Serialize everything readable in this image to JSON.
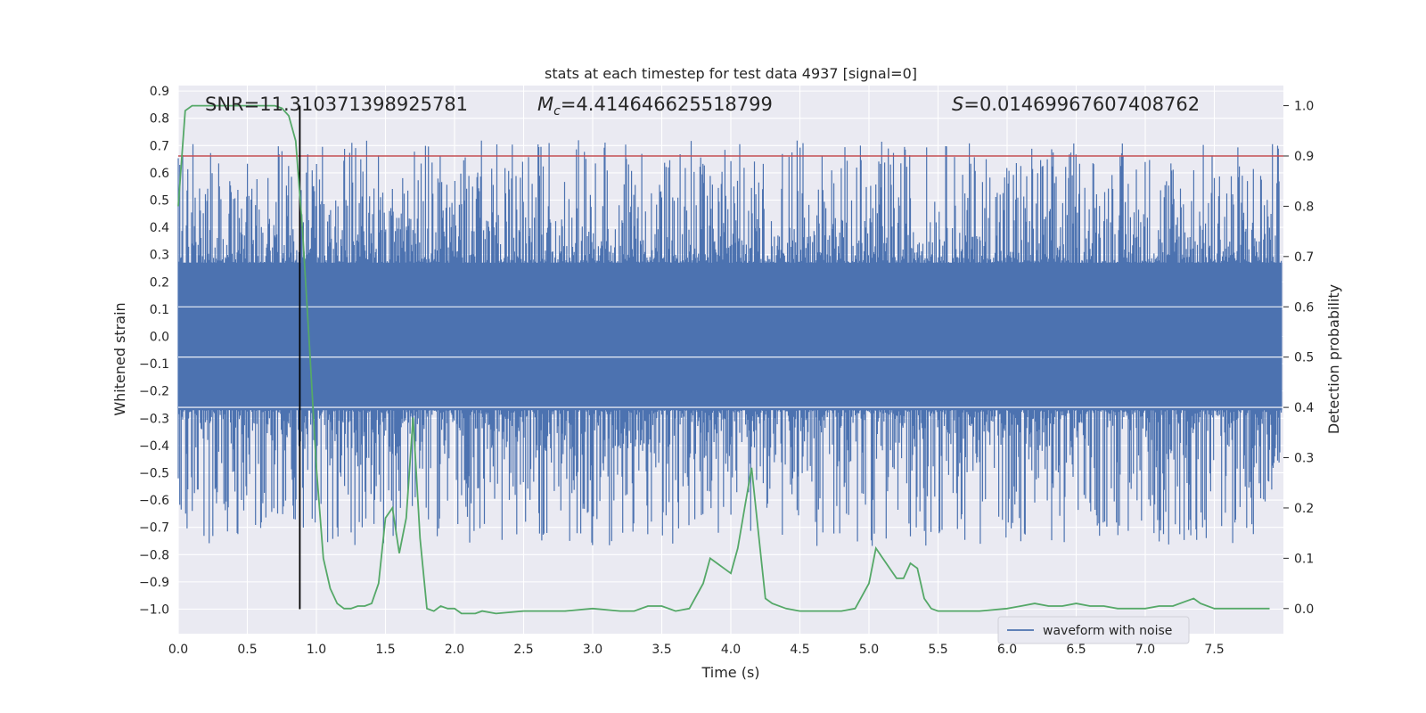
{
  "chart_data": {
    "type": "line",
    "title": "stats at each timestep for test data 4937 [signal=0]",
    "xlabel": "Time (s)",
    "ylabel": "Whitened strain",
    "y2label": "Detection probability",
    "xlim": [
      0.0,
      8.0
    ],
    "ylim": [
      -1.09,
      0.92
    ],
    "y2lim": [
      -0.05,
      1.04
    ],
    "x_ticks": [
      0.0,
      0.5,
      1.0,
      1.5,
      2.0,
      2.5,
      3.0,
      3.5,
      4.0,
      4.5,
      5.0,
      5.5,
      6.0,
      6.5,
      7.0,
      7.5
    ],
    "x_tick_labels": [
      "0.0",
      "0.5",
      "1.0",
      "1.5",
      "2.0",
      "2.5",
      "3.0",
      "3.5",
      "4.0",
      "4.5",
      "5.0",
      "5.5",
      "6.0",
      "6.5",
      "7.0",
      "7.5"
    ],
    "y_ticks": [
      0.9,
      0.8,
      0.7,
      0.6,
      0.5,
      0.4,
      0.3,
      0.2,
      0.1,
      0.0,
      -0.1,
      -0.2,
      -0.3,
      -0.4,
      -0.5,
      -0.6,
      -0.7,
      -0.8,
      -0.9,
      -1.0
    ],
    "y_tick_labels": [
      "0.9",
      "0.8",
      "0.7",
      "0.6",
      "0.5",
      "0.4",
      "0.3",
      "0.2",
      "0.1",
      "0.0",
      "−0.1",
      "−0.2",
      "−0.3",
      "−0.4",
      "−0.5",
      "−0.6",
      "−0.7",
      "−0.8",
      "−0.9",
      "−1.0"
    ],
    "y2_ticks": [
      1.0,
      0.9,
      0.8,
      0.7,
      0.6,
      0.5,
      0.4,
      0.3,
      0.2,
      0.1,
      0.0
    ],
    "y2_tick_labels": [
      "1.0",
      "0.9",
      "0.8",
      "0.7",
      "0.6",
      "0.5",
      "0.4",
      "0.3",
      "0.2",
      "0.1",
      "0.0"
    ],
    "grid": true,
    "legend_position": "lower-right",
    "annotations": {
      "snr": "SNR=11.310371398925781",
      "mc_symbol": "M",
      "mc_sub": "c",
      "mc_value": "=4.414646625518799",
      "s_symbol": "S",
      "s_value": "=0.01469967607408762"
    },
    "colors": {
      "background": "#eaeaf2",
      "waveform": "#4c72b0",
      "probability": "#55a868",
      "threshold": "#c44e52",
      "marker": "#000000",
      "grid": "#ffffff"
    },
    "threshold_probability": 0.9,
    "marker_time": 0.88,
    "series": [
      {
        "name": "waveform with noise",
        "kind": "noise-envelope",
        "core_band": [
          -0.27,
          0.27
        ],
        "envelope_max": 0.82,
        "envelope_min": -1.0
      },
      {
        "axis": "right",
        "x": [
          0.0,
          0.05,
          0.1,
          0.15,
          0.2,
          0.25,
          0.3,
          0.35,
          0.4,
          0.45,
          0.5,
          0.55,
          0.6,
          0.65,
          0.7,
          0.75,
          0.8,
          0.85,
          0.9,
          0.95,
          1.0,
          1.05,
          1.1,
          1.15,
          1.2,
          1.25,
          1.3,
          1.35,
          1.4,
          1.45,
          1.5,
          1.55,
          1.6,
          1.65,
          1.7,
          1.75,
          1.8,
          1.85,
          1.9,
          1.95,
          2.0,
          2.05,
          2.1,
          2.15,
          2.2,
          2.3,
          2.5,
          2.8,
          3.0,
          3.2,
          3.3,
          3.4,
          3.5,
          3.6,
          3.7,
          3.8,
          3.85,
          3.9,
          3.95,
          4.0,
          4.05,
          4.1,
          4.15,
          4.2,
          4.25,
          4.3,
          4.4,
          4.5,
          4.6,
          4.8,
          4.9,
          5.0,
          5.05,
          5.1,
          5.15,
          5.2,
          5.25,
          5.3,
          5.35,
          5.4,
          5.45,
          5.5,
          5.8,
          6.0,
          6.1,
          6.2,
          6.3,
          6.4,
          6.5,
          6.6,
          6.7,
          6.8,
          6.9,
          7.0,
          7.1,
          7.2,
          7.3,
          7.35,
          7.4,
          7.5,
          7.7,
          7.9
        ],
        "y": [
          0.8,
          0.99,
          1.0,
          1.0,
          1.0,
          1.0,
          1.0,
          1.0,
          1.0,
          1.0,
          1.0,
          1.0,
          1.0,
          1.0,
          1.0,
          0.995,
          0.98,
          0.93,
          0.75,
          0.52,
          0.28,
          0.1,
          0.04,
          0.01,
          0.0,
          0.0,
          0.005,
          0.005,
          0.01,
          0.05,
          0.18,
          0.2,
          0.11,
          0.18,
          0.38,
          0.14,
          0.0,
          -0.005,
          0.005,
          0.0,
          0.0,
          -0.01,
          -0.01,
          -0.01,
          -0.005,
          -0.01,
          -0.005,
          -0.005,
          0.0,
          -0.005,
          -0.005,
          0.005,
          0.005,
          -0.005,
          0.0,
          0.05,
          0.1,
          0.09,
          0.08,
          0.07,
          0.12,
          0.2,
          0.28,
          0.15,
          0.02,
          0.01,
          0.0,
          -0.005,
          -0.005,
          -0.005,
          0.0,
          0.05,
          0.12,
          0.1,
          0.08,
          0.06,
          0.06,
          0.09,
          0.08,
          0.02,
          0.0,
          -0.005,
          -0.005,
          0.0,
          0.005,
          0.01,
          0.005,
          0.005,
          0.01,
          0.005,
          0.005,
          0.0,
          0.0,
          0.0,
          0.005,
          0.005,
          0.015,
          0.02,
          0.01,
          0.0,
          0.0,
          0.0
        ]
      }
    ]
  }
}
